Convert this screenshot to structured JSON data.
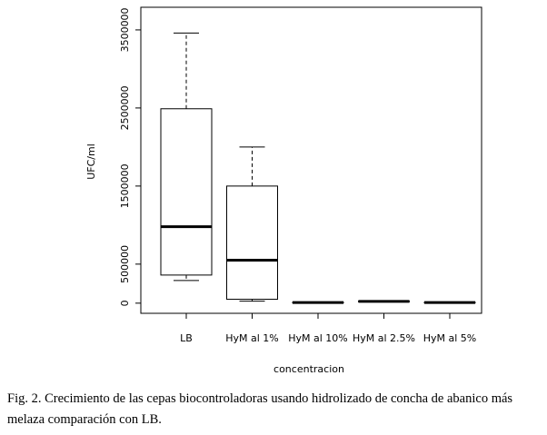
{
  "chart_data": {
    "type": "box",
    "categories": [
      "LB",
      "HyM al 1%",
      "HyM al 10%",
      "HyM al 2.5%",
      "HyM al 5%"
    ],
    "boxes": [
      {
        "min": 290000,
        "q1": 360000,
        "median": 980000,
        "q3": 2490000,
        "max": 3460000
      },
      {
        "min": 25000,
        "q1": 50000,
        "median": 550000,
        "q3": 1500000,
        "max": 2000000
      },
      {
        "min": 0,
        "q1": 5000,
        "median": 8000,
        "q3": 10000,
        "max": 12000
      },
      {
        "min": 15000,
        "q1": 20000,
        "median": 22000,
        "q3": 25000,
        "max": 28000
      },
      {
        "min": 3000,
        "q1": 6000,
        "median": 8000,
        "q3": 10000,
        "max": 12000
      }
    ],
    "color": "#000000",
    "x_label": "concentracion",
    "y_label": "UFC/ml",
    "ylim": [
      -130000,
      3790000
    ],
    "yticks": [
      0,
      500000,
      1500000,
      2500000,
      3500000
    ]
  },
  "caption": "Fig. 2. Crecimiento de las cepas biocontroladoras usando hidrolizado de concha de abanico más melaza comparación con LB."
}
